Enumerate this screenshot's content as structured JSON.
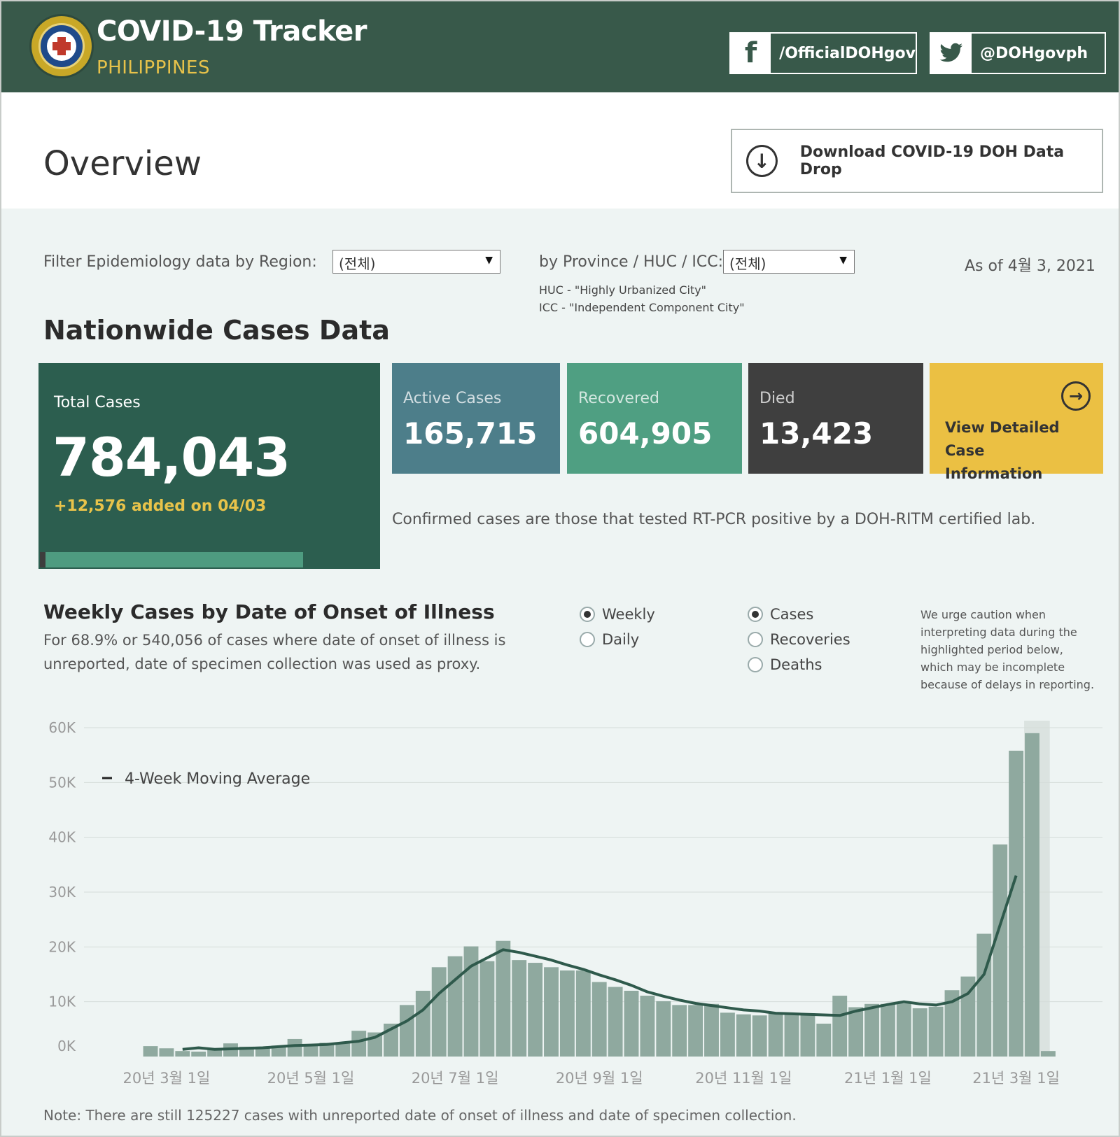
{
  "header": {
    "title": "COVID-19 Tracker",
    "subtitle": "PHILIPPINES",
    "facebook_label": "/OfficialDOHgov",
    "twitter_label": "@DOHgovph",
    "facebook_icon": "facebook-icon",
    "twitter_icon": "twitter-icon",
    "colors": {
      "bar": "#38594a",
      "accent": "#e7c24a"
    }
  },
  "overview": {
    "title": "Overview",
    "download_label": "Download COVID-19 DOH Data Drop"
  },
  "filters": {
    "region_label": "Filter Epidemiology data by Region:",
    "region_value": "(전체)",
    "province_label": "by Province / HUC / ICC:",
    "province_value": "(전체)",
    "huc_note": "HUC - \"Highly Urbanized City\"",
    "icc_note": "ICC - \"Independent Component City\"",
    "as_of": "As of 4월 3, 2021"
  },
  "nationwide": {
    "title": "Nationwide Cases Data",
    "total_label": "Total Cases",
    "total_value": "784,043",
    "added": "+12,576 added on 04/03",
    "active_label": "Active Cases",
    "active_value": "165,715",
    "recovered_label": "Recovered",
    "recovered_value": "604,905",
    "died_label": "Died",
    "died_value": "13,423",
    "view_detail": "View Detailed Case Information",
    "confirmed_note": "Confirmed cases are those that tested RT-PCR positive by a DOH-RITM certified lab.",
    "colors": {
      "total": "#2c5e4f",
      "active": "#4d7e8a",
      "recovered": "#4f9f82",
      "died": "#3f3f3f",
      "view": "#ebc043"
    }
  },
  "weekly": {
    "title": "Weekly Cases by Date of Onset of Illness",
    "description": "For 68.9% or 540,056 of cases where date of onset of illness is unreported, date of specimen collection was used as proxy.",
    "radio_weekly": "Weekly",
    "radio_daily": "Daily",
    "radio_cases": "Cases",
    "radio_recoveries": "Recoveries",
    "radio_deaths": "Deaths",
    "caution": "We urge caution when interpreting data during the highlighted period below, which may be incomplete because of delays in reporting.",
    "note": "Note: There are still 125227 cases with unreported date of onset of illness and date of specimen collection."
  },
  "chart_data": {
    "type": "bar",
    "title": "Weekly Cases by Date of Onset of Illness",
    "yticks": [
      "0K",
      "10K",
      "20K",
      "30K",
      "40K",
      "50K",
      "60K"
    ],
    "ylim": [
      0,
      60000
    ],
    "xticks": [
      "20년 3월 1일",
      "20년 5월 1일",
      "20년 7월 1일",
      "20년 9월 1일",
      "20년 11월 1일",
      "21년 1월 1일",
      "21년 3월 1일"
    ],
    "xtick_week_index": [
      1,
      10,
      19,
      28,
      37,
      46,
      54
    ],
    "legend": "4-Week Moving Average",
    "grid": true,
    "highlight_last_weeks": 1,
    "series": [
      {
        "name": "Cases",
        "color": "#8fa99f",
        "values": [
          1900,
          1500,
          1000,
          900,
          1200,
          2400,
          1800,
          1500,
          2000,
          3200,
          2200,
          2500,
          2400,
          4700,
          4400,
          6000,
          9400,
          12000,
          16300,
          18300,
          20100,
          17400,
          21100,
          17600,
          17100,
          16300,
          15700,
          15700,
          13600,
          12700,
          12000,
          11100,
          10100,
          9400,
          9400,
          9600,
          8000,
          7700,
          7500,
          7800,
          7800,
          7900,
          6000,
          11100,
          9000,
          9600,
          9600,
          9700,
          8800,
          9100,
          12100,
          14600,
          22400,
          38700,
          55800,
          59000,
          1000
        ]
      },
      {
        "name": "4-Week Moving Average",
        "color": "#2f5a4c",
        "values": [
          null,
          null,
          1300,
          1600,
          1300,
          1400,
          1500,
          1600,
          1800,
          2000,
          2100,
          2200,
          2500,
          2800,
          3500,
          5000,
          6500,
          8500,
          11500,
          14000,
          16500,
          18000,
          19500,
          19000,
          18300,
          17600,
          16700,
          15900,
          14900,
          14000,
          13000,
          11800,
          11000,
          10300,
          9700,
          9300,
          8900,
          8500,
          8300,
          7900,
          7800,
          7700,
          7600,
          7500,
          8300,
          8900,
          9500,
          10000,
          9600,
          9400,
          10000,
          11500,
          15000,
          24000,
          33000,
          null,
          null
        ]
      }
    ]
  }
}
